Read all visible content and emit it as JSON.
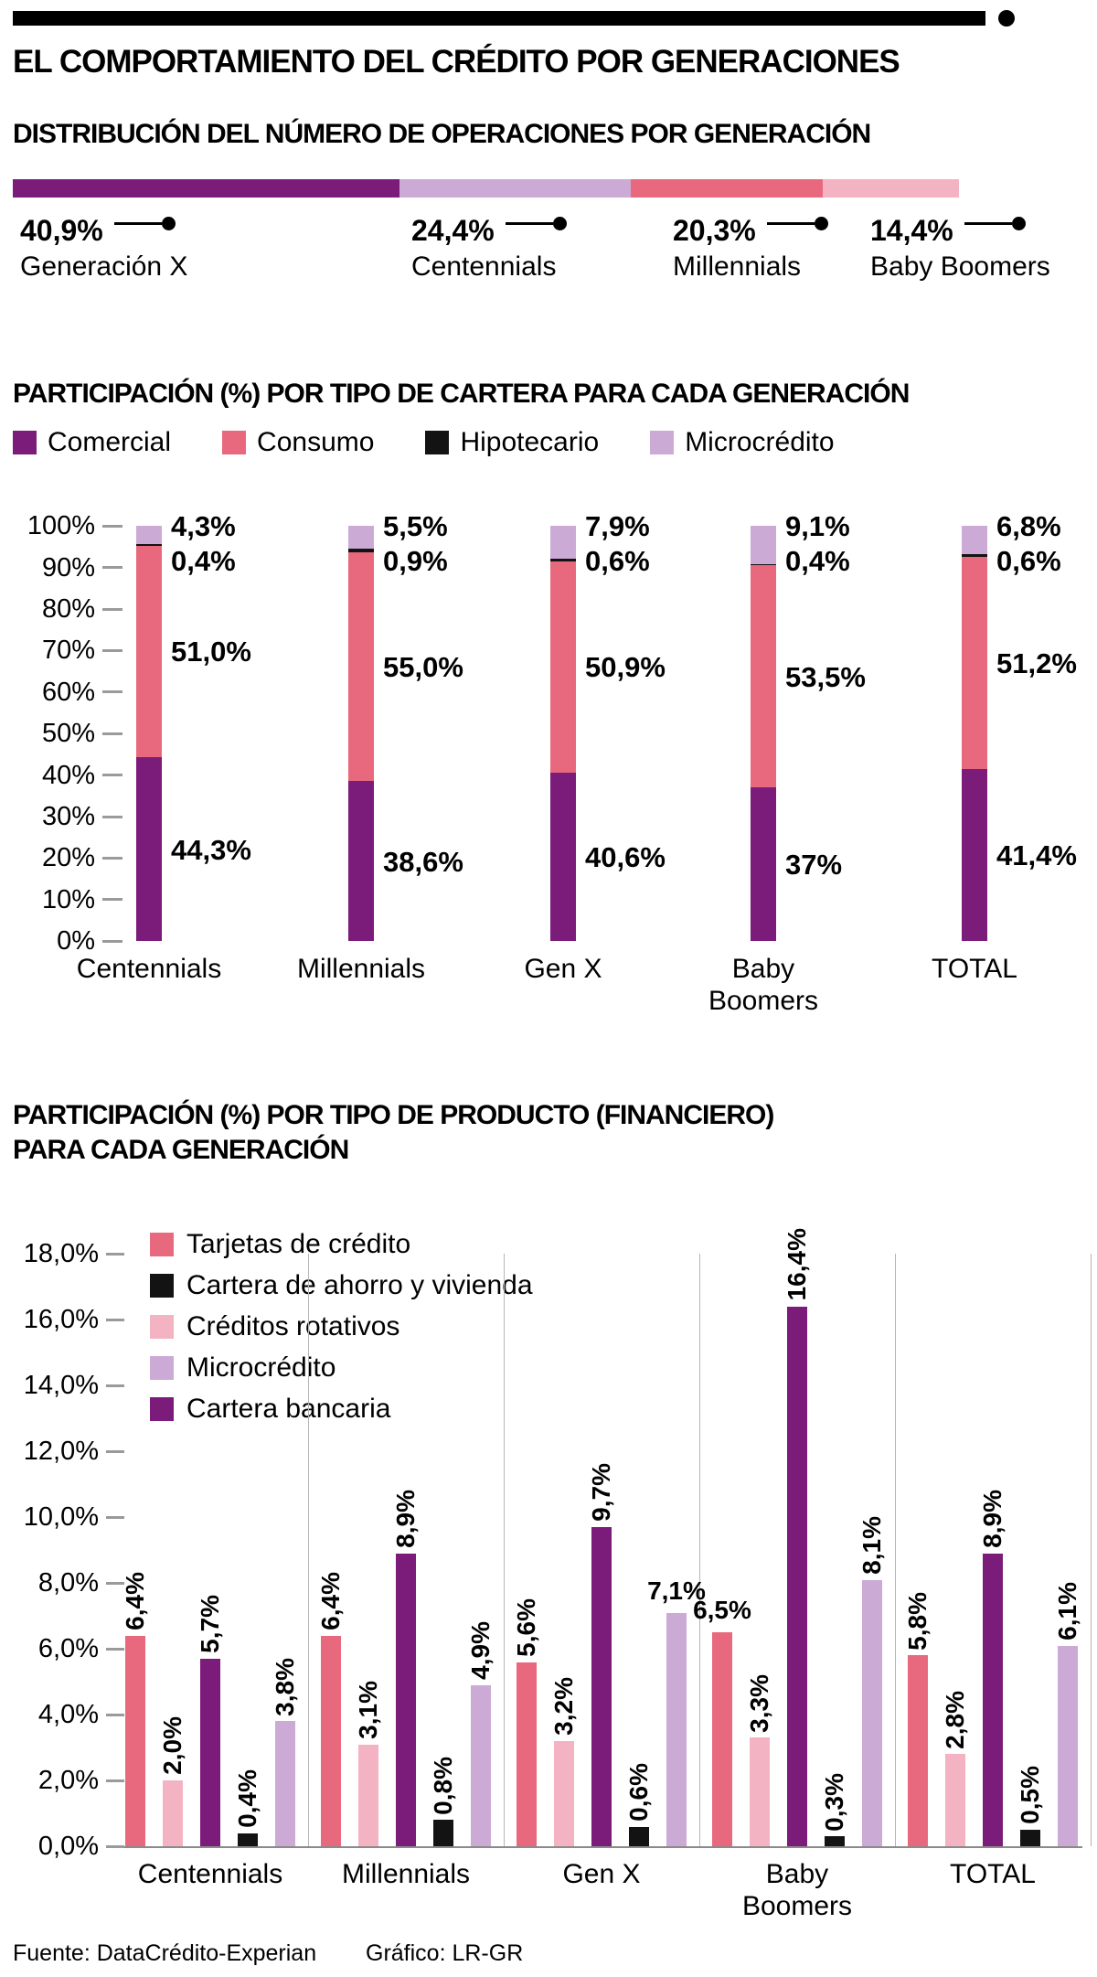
{
  "page": {
    "title": "EL COMPORTAMIENTO DEL CRÉDITO POR GENERACIONES",
    "footer": {
      "source": "Fuente: DataCrédito-Experian",
      "credit": "Gráfico: LR-GR"
    }
  },
  "colors": {
    "purple": "#7b1b7a",
    "pink": "#e8697e",
    "light_pink": "#f3b3c2",
    "lavender": "#cbaad6",
    "black": "#131313",
    "grid": "#9a9a9a"
  },
  "chart_data": [
    {
      "type": "bar",
      "variant": "horizontal-stacked-distribution",
      "title": "DISTRIBUCIÓN DEL NÚMERO DE OPERACIONES POR GENERACIÓN",
      "unit": "%",
      "segments": [
        {
          "label": "Generación X",
          "value": 40.9,
          "value_label": "40,9%",
          "color_key": "purple"
        },
        {
          "label": "Centennials",
          "value": 24.4,
          "value_label": "24,4%",
          "color_key": "lavender"
        },
        {
          "label": "Millennials",
          "value": 20.3,
          "value_label": "20,3%",
          "color_key": "pink"
        },
        {
          "label": "Baby Boomers",
          "value": 14.4,
          "value_label": "14,4%",
          "color_key": "light_pink"
        }
      ]
    },
    {
      "type": "bar",
      "variant": "stacked-column-100",
      "title": "PARTICIPACIÓN (%) POR TIPO DE CARTERA PARA CADA GENERACIÓN",
      "ylim": [
        0,
        100
      ],
      "y_ticks": [
        "100%",
        "90%",
        "80%",
        "70%",
        "60%",
        "50%",
        "40%",
        "30%",
        "20%",
        "10%",
        "0%"
      ],
      "categories": [
        "Centennials",
        "Millennials",
        "Gen X",
        "Baby Boomers",
        "TOTAL"
      ],
      "legend": [
        {
          "label": "Comercial",
          "color_key": "purple"
        },
        {
          "label": "Consumo",
          "color_key": "pink"
        },
        {
          "label": "Hipotecario",
          "color_key": "black"
        },
        {
          "label": "Microcrédito",
          "color_key": "lavender"
        }
      ],
      "series": [
        {
          "name": "Comercial",
          "color_key": "purple",
          "values": [
            44.3,
            38.6,
            40.6,
            37,
            41.4
          ],
          "labels": [
            "44,3%",
            "38,6%",
            "40,6%",
            "37%",
            "41,4%"
          ]
        },
        {
          "name": "Consumo",
          "color_key": "pink",
          "values": [
            51.0,
            55.0,
            50.9,
            53.5,
            51.2
          ],
          "labels": [
            "51,0%",
            "55,0%",
            "50,9%",
            "53,5%",
            "51,2%"
          ]
        },
        {
          "name": "Hipotecario",
          "color_key": "black",
          "values": [
            0.4,
            0.9,
            0.6,
            0.4,
            0.6
          ],
          "labels": [
            "0,4%",
            "0,9%",
            "0,6%",
            "0,4%",
            "0,6%"
          ]
        },
        {
          "name": "Microcrédito",
          "color_key": "lavender",
          "values": [
            4.3,
            5.5,
            7.9,
            9.1,
            6.8
          ],
          "labels": [
            "4,3%",
            "5,5%",
            "7,9%",
            "9,1%",
            "6,8%"
          ]
        }
      ]
    },
    {
      "type": "bar",
      "variant": "grouped-column",
      "title": "PARTICIPACIÓN (%) POR TIPO DE PRODUCTO (FINANCIERO) PARA CADA GENERACIÓN",
      "title_lines": [
        "PARTICIPACIÓN (%) POR TIPO DE PRODUCTO (FINANCIERO)",
        "PARA CADA GENERACIÓN"
      ],
      "ylim": [
        0,
        18
      ],
      "y_ticks": [
        "18,0%",
        "16,0%",
        "14,0%",
        "12,0%",
        "10,0%",
        "8,0%",
        "6,0%",
        "4,0%",
        "2,0%",
        "0,0%"
      ],
      "categories": [
        "Centennials",
        "Millennials",
        "Gen X",
        "Baby Boomers",
        "TOTAL"
      ],
      "legend": [
        {
          "label": "Tarjetas de crédito",
          "color_key": "pink"
        },
        {
          "label": "Cartera de ahorro y vivienda",
          "color_key": "black"
        },
        {
          "label": "Créditos rotativos",
          "color_key": "light_pink"
        },
        {
          "label": "Microcrédito",
          "color_key": "lavender"
        },
        {
          "label": "Cartera bancaria",
          "color_key": "purple"
        }
      ],
      "series": [
        {
          "name": "Tarjetas de crédito",
          "color_key": "pink",
          "values": [
            6.4,
            6.4,
            5.6,
            6.5,
            5.8
          ],
          "labels": [
            "6,4%",
            "6,4%",
            "5,6%",
            "6,5%",
            "5,8%"
          ],
          "horizontal_labels": [
            false,
            false,
            false,
            true,
            false
          ]
        },
        {
          "name": "Créditos rotativos",
          "color_key": "light_pink",
          "values": [
            2.0,
            3.1,
            3.2,
            3.3,
            2.8
          ],
          "labels": [
            "2,0%",
            "3,1%",
            "3,2%",
            "3,3%",
            "2,8%"
          ],
          "horizontal_labels": [
            false,
            false,
            false,
            false,
            false
          ]
        },
        {
          "name": "Cartera bancaria",
          "color_key": "purple",
          "values": [
            5.7,
            8.9,
            9.7,
            16.4,
            8.9
          ],
          "labels": [
            "5,7%",
            "8,9%",
            "9,7%",
            "16,4%",
            "8,9%"
          ],
          "horizontal_labels": [
            false,
            false,
            false,
            false,
            false
          ]
        },
        {
          "name": "Cartera de ahorro y vivienda",
          "color_key": "black",
          "values": [
            0.4,
            0.8,
            0.6,
            0.3,
            0.5
          ],
          "labels": [
            "0,4%",
            "0,8%",
            "0,6%",
            "0,3%",
            "0,5%"
          ],
          "horizontal_labels": [
            false,
            false,
            false,
            false,
            false
          ]
        },
        {
          "name": "Microcrédito",
          "color_key": "lavender",
          "values": [
            3.8,
            4.9,
            7.1,
            8.1,
            6.1
          ],
          "labels": [
            "3,8%",
            "4,9%",
            "7,1%",
            "8,1%",
            "6,1%"
          ],
          "horizontal_labels": [
            false,
            false,
            true,
            false,
            false
          ]
        }
      ]
    }
  ]
}
